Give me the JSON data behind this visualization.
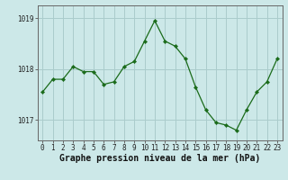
{
  "x": [
    0,
    1,
    2,
    3,
    4,
    5,
    6,
    7,
    8,
    9,
    10,
    11,
    12,
    13,
    14,
    15,
    16,
    17,
    18,
    19,
    20,
    21,
    22,
    23
  ],
  "y": [
    1017.55,
    1017.8,
    1017.8,
    1018.05,
    1017.95,
    1017.95,
    1017.7,
    1017.75,
    1018.05,
    1018.15,
    1018.55,
    1018.95,
    1018.55,
    1018.45,
    1018.2,
    1017.65,
    1017.2,
    1016.95,
    1016.9,
    1016.8,
    1017.2,
    1017.55,
    1017.75,
    1018.2
  ],
  "xlabel": "Graphe pression niveau de la mer (hPa)",
  "line_color": "#1a6b1a",
  "marker_color": "#1a6b1a",
  "bg_color": "#cce8e8",
  "grid_color": "#aacccc",
  "axis_color": "#666666",
  "ylim_min": 1016.6,
  "ylim_max": 1019.25,
  "yticks": [
    1017,
    1018,
    1019
  ],
  "xticks": [
    0,
    1,
    2,
    3,
    4,
    5,
    6,
    7,
    8,
    9,
    10,
    11,
    12,
    13,
    14,
    15,
    16,
    17,
    18,
    19,
    20,
    21,
    22,
    23
  ],
  "tick_fontsize": 5.5,
  "xlabel_fontsize": 7.0
}
